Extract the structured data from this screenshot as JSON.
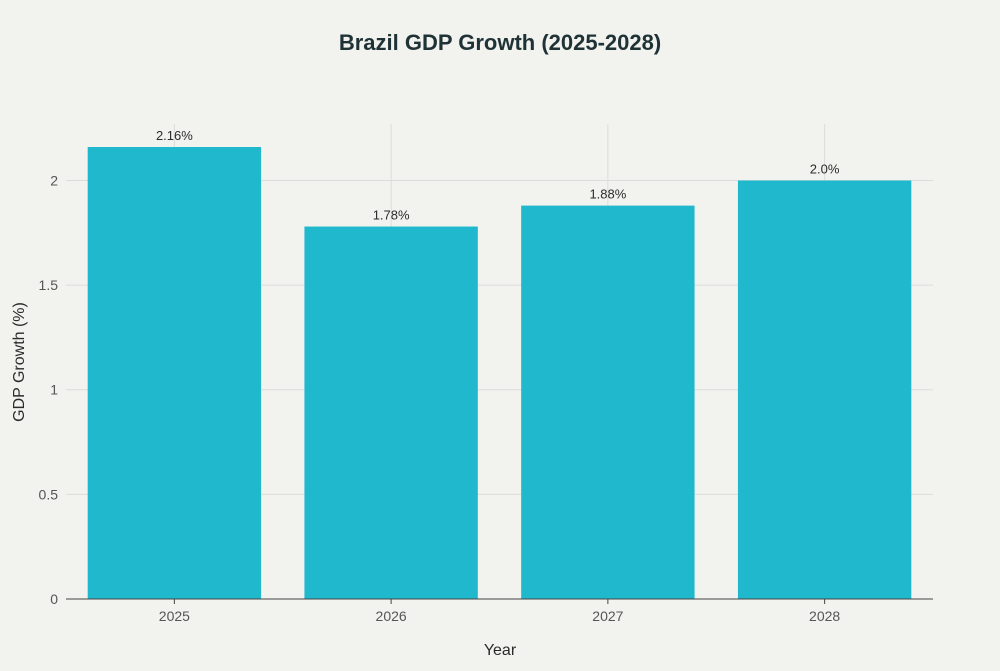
{
  "chart_data": {
    "type": "bar",
    "title": "Brazil GDP Growth (2025-2028)",
    "xlabel": "Year",
    "ylabel": "GDP Growth (%)",
    "categories": [
      "2025",
      "2026",
      "2027",
      "2028"
    ],
    "values": [
      2.16,
      1.78,
      1.88,
      2.0
    ],
    "data_labels": [
      "2.16%",
      "1.78%",
      "1.88%",
      "2.0%"
    ],
    "ylim": [
      0,
      2.27
    ],
    "yticks": [
      0,
      0.5,
      1,
      1.5,
      2
    ],
    "ytick_labels": [
      "0",
      "0.5",
      "1",
      "1.5",
      "2"
    ],
    "grid": true,
    "colors": {
      "bar": "#1fb8cd",
      "background": "#f2f2ef",
      "grid": "#dcdcdc",
      "axis": "#444444"
    }
  }
}
